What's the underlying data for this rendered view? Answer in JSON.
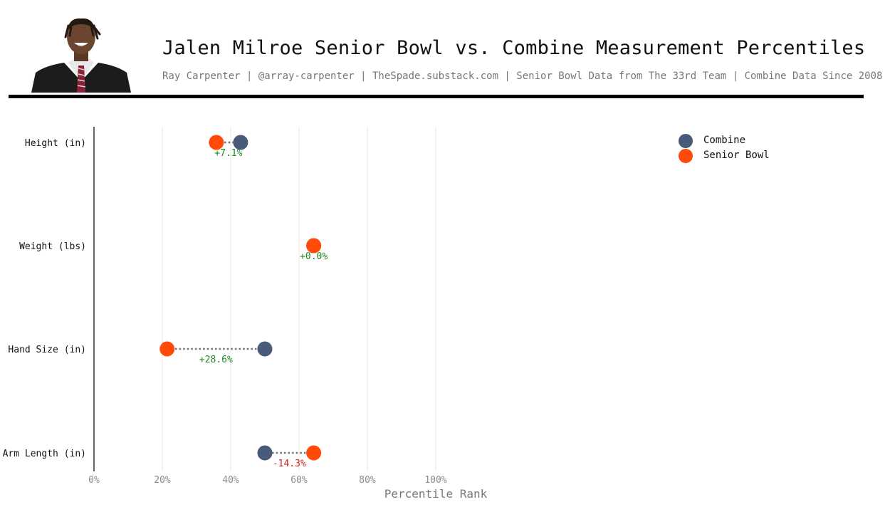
{
  "header": {
    "title": "Jalen Milroe Senior Bowl vs. Combine Measurement Percentiles",
    "subtitle": "Ray Carpenter | @array-carpenter | TheSpade.substack.com | Senior Bowl Data from The 33rd Team | Combine Data Since 2008",
    "headshot_icon": "player-headshot-photo"
  },
  "chart_data": {
    "type": "scatter",
    "subtype": "dumbbell",
    "title": "Jalen Milroe Senior Bowl vs. Combine Measurement Percentiles",
    "xlabel": "Percentile Rank",
    "ylabel": "",
    "xlim": [
      0,
      115
    ],
    "xticks": [
      0,
      20,
      40,
      60,
      80,
      100
    ],
    "xtick_labels": [
      "0%",
      "20%",
      "40%",
      "60%",
      "80%",
      "100%"
    ],
    "grid": "vertical",
    "legend_position": "top-right",
    "categories": [
      "Height (in)",
      "Weight (lbs)",
      "Hand Size (in)",
      "Arm Length (in)"
    ],
    "series": [
      {
        "name": "Combine",
        "color": "#4a5a7a",
        "values": [
          42.9,
          64.3,
          50.0,
          50.0
        ]
      },
      {
        "name": "Senior Bowl",
        "color": "#ff4a0a",
        "values": [
          35.8,
          64.3,
          21.4,
          64.3
        ]
      }
    ],
    "differences": [
      "+7.1%",
      "+0.0%",
      "+28.6%",
      "-14.3%"
    ],
    "difference_colors": [
      "#1f8a1f",
      "#1f8a1f",
      "#1f8a1f",
      "#d62020"
    ]
  }
}
